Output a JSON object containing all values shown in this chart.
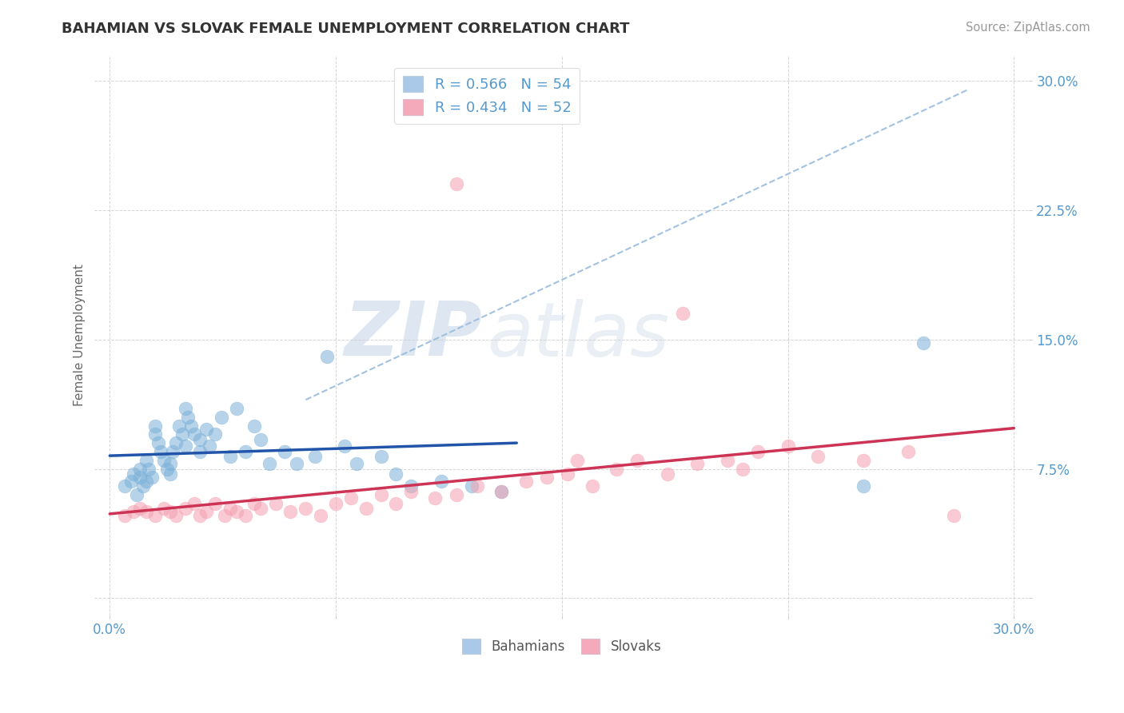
{
  "title": "BAHAMIAN VS SLOVAK FEMALE UNEMPLOYMENT CORRELATION CHART",
  "source": "Source: ZipAtlas.com",
  "ylabel": "Female Unemployment",
  "xlim": [
    -0.005,
    0.305
  ],
  "ylim": [
    -0.01,
    0.315
  ],
  "xticks": [
    0.0,
    0.075,
    0.15,
    0.225,
    0.3
  ],
  "xticklabels_ends": [
    "0.0%",
    "",
    "",
    "",
    "30.0%"
  ],
  "yticks": [
    0.0,
    0.075,
    0.15,
    0.225,
    0.3
  ],
  "yticklabels": [
    "",
    "7.5%",
    "15.0%",
    "22.5%",
    "30.0%"
  ],
  "blue_R": 0.566,
  "blue_N": 54,
  "pink_R": 0.434,
  "pink_N": 52,
  "blue_scatter_color": "#7ab0d8",
  "pink_scatter_color": "#f5a0b0",
  "blue_line_color": "#2255aa",
  "pink_line_color": "#cc3355",
  "dash_line_color": "#99bbdd",
  "watermark_color": "#c8d8e8",
  "axis_label_color": "#5599cc",
  "background_color": "#ffffff",
  "grid_color": "#cccccc",
  "blue_scatter_x": [
    0.005,
    0.007,
    0.008,
    0.009,
    0.01,
    0.01,
    0.011,
    0.012,
    0.012,
    0.013,
    0.014,
    0.015,
    0.015,
    0.016,
    0.017,
    0.018,
    0.019,
    0.02,
    0.02,
    0.021,
    0.022,
    0.023,
    0.024,
    0.025,
    0.025,
    0.026,
    0.027,
    0.028,
    0.03,
    0.03,
    0.032,
    0.033,
    0.035,
    0.037,
    0.04,
    0.042,
    0.045,
    0.048,
    0.05,
    0.053,
    0.058,
    0.062,
    0.068,
    0.072,
    0.078,
    0.082,
    0.09,
    0.095,
    0.1,
    0.11,
    0.12,
    0.13,
    0.25,
    0.27
  ],
  "blue_scatter_y": [
    0.065,
    0.068,
    0.072,
    0.06,
    0.07,
    0.075,
    0.065,
    0.08,
    0.068,
    0.075,
    0.07,
    0.095,
    0.1,
    0.09,
    0.085,
    0.08,
    0.075,
    0.072,
    0.078,
    0.085,
    0.09,
    0.1,
    0.095,
    0.088,
    0.11,
    0.105,
    0.1,
    0.095,
    0.085,
    0.092,
    0.098,
    0.088,
    0.095,
    0.105,
    0.082,
    0.11,
    0.085,
    0.1,
    0.092,
    0.078,
    0.085,
    0.078,
    0.082,
    0.14,
    0.088,
    0.078,
    0.082,
    0.072,
    0.065,
    0.068,
    0.065,
    0.062,
    0.065,
    0.148
  ],
  "pink_scatter_x": [
    0.005,
    0.008,
    0.01,
    0.012,
    0.015,
    0.018,
    0.02,
    0.022,
    0.025,
    0.028,
    0.03,
    0.032,
    0.035,
    0.038,
    0.04,
    0.042,
    0.045,
    0.048,
    0.05,
    0.055,
    0.06,
    0.065,
    0.07,
    0.075,
    0.08,
    0.085,
    0.09,
    0.095,
    0.1,
    0.108,
    0.115,
    0.122,
    0.13,
    0.138,
    0.145,
    0.152,
    0.16,
    0.168,
    0.175,
    0.185,
    0.195,
    0.205,
    0.215,
    0.225,
    0.235,
    0.25,
    0.265,
    0.19,
    0.21,
    0.155,
    0.28,
    0.115
  ],
  "pink_scatter_y": [
    0.048,
    0.05,
    0.052,
    0.05,
    0.048,
    0.052,
    0.05,
    0.048,
    0.052,
    0.055,
    0.048,
    0.05,
    0.055,
    0.048,
    0.052,
    0.05,
    0.048,
    0.055,
    0.052,
    0.055,
    0.05,
    0.052,
    0.048,
    0.055,
    0.058,
    0.052,
    0.06,
    0.055,
    0.062,
    0.058,
    0.06,
    0.065,
    0.062,
    0.068,
    0.07,
    0.072,
    0.065,
    0.075,
    0.08,
    0.072,
    0.078,
    0.08,
    0.085,
    0.088,
    0.082,
    0.08,
    0.085,
    0.165,
    0.075,
    0.08,
    0.048,
    0.24
  ],
  "blue_trend_x": [
    0.0,
    0.135
  ],
  "pink_trend_x": [
    0.0,
    0.3
  ],
  "dash_line_pts": [
    [
      0.065,
      0.115
    ],
    [
      0.285,
      0.295
    ]
  ]
}
